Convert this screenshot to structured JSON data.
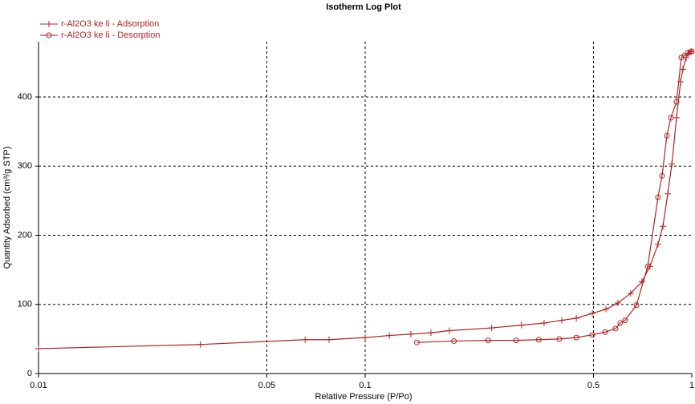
{
  "chart_data": {
    "type": "line",
    "title": "Isotherm Log Plot",
    "x_label": "Relative Pressure (P/Po)",
    "y_label": "Quantity Adsorbed (cm³/g STP)",
    "xscale": "log",
    "xlim": [
      0.01,
      1
    ],
    "xticks": [
      0.01,
      0.05,
      0.1,
      0.5,
      1
    ],
    "ylim": [
      0,
      480
    ],
    "yticks": [
      0,
      100,
      200,
      300,
      400
    ],
    "grid": true,
    "legend": "top-left",
    "series": [
      {
        "name": "r-Al2O3 ke li - Adsorption",
        "color": "#b22222",
        "marker": "plus",
        "x": [
          0.01,
          0.0313,
          0.0655,
          0.0775,
          0.1,
          0.1186,
          0.138,
          0.159,
          0.181,
          0.244,
          0.301,
          0.353,
          0.4,
          0.443,
          0.496,
          0.546,
          0.594,
          0.65,
          0.704,
          0.745,
          0.788,
          0.816,
          0.844,
          0.869,
          0.898,
          0.924,
          0.939,
          0.961,
          0.977,
          0.995
        ],
        "values": [
          36,
          42,
          49,
          49,
          52,
          55,
          57,
          59,
          62,
          66,
          70,
          73,
          77,
          80,
          87,
          93,
          102,
          116,
          133,
          155,
          187,
          213,
          260,
          303,
          370,
          422,
          440,
          457,
          463,
          466
        ]
      },
      {
        "name": "r-Al2O3 ke li - Desorption",
        "color": "#b22222",
        "marker": "circle",
        "x": [
          1.0,
          0.989,
          0.972,
          0.95,
          0.929,
          0.898,
          0.863,
          0.839,
          0.811,
          0.788,
          0.733,
          0.677,
          0.625,
          0.604,
          0.584,
          0.543,
          0.496,
          0.443,
          0.393,
          0.34,
          0.29,
          0.238,
          0.187,
          0.144
        ],
        "values": [
          466,
          465,
          464,
          460,
          457,
          393,
          370,
          344,
          286,
          255,
          155,
          99,
          77,
          73,
          65,
          60,
          56,
          52,
          50,
          49,
          48,
          48,
          47,
          45
        ]
      }
    ]
  }
}
